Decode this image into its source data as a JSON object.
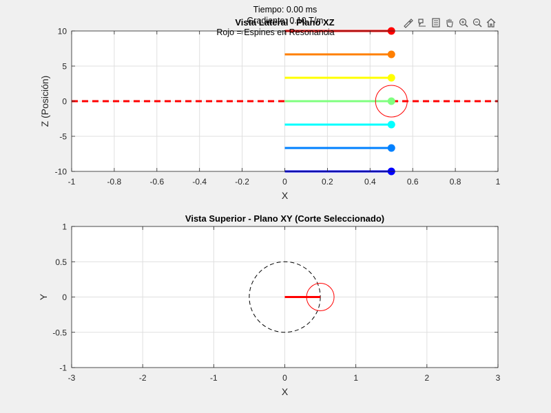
{
  "annotations": {
    "line1": "Tiempo: 0.00 ms",
    "line2": "Gradiente: 0.10 T/m",
    "line3": "Rojo = Espines en Resonancia"
  },
  "toolbar": {
    "icons": [
      "brush-icon",
      "data-tips-icon",
      "legend-icon",
      "pan-icon",
      "zoom-in-icon",
      "zoom-out-icon",
      "home-icon"
    ]
  },
  "colors": {
    "resonance": "#ff0000",
    "grid": "#dfdfdf",
    "axes_bg": "#ffffff",
    "figure_bg": "#f0f0f0"
  },
  "chart_data": [
    {
      "type": "line",
      "title": "Vista Lateral - Plano XZ",
      "xlabel": "X",
      "ylabel": "Z (Posición)",
      "xlim": [
        -1,
        1
      ],
      "ylim": [
        -10,
        10
      ],
      "xticks": [
        "-1",
        "-0.8",
        "-0.6",
        "-0.4",
        "-0.2",
        "0",
        "0.2",
        "0.4",
        "0.6",
        "0.8",
        "1"
      ],
      "xtick_values": [
        -1,
        -0.8,
        -0.6,
        -0.4,
        -0.2,
        0,
        0.2,
        0.4,
        0.6,
        0.8,
        1
      ],
      "yticks": [
        "-10",
        "-5",
        "0",
        "5",
        "10"
      ],
      "ytick_values": [
        -10,
        -5,
        0,
        5,
        10
      ],
      "grid": true,
      "resonance_line": {
        "z": 0,
        "x": [
          -1,
          1
        ],
        "style": "dashed",
        "color": "#ff0000"
      },
      "series": [
        {
          "z": 10,
          "x": [
            0,
            0.5
          ],
          "color": "#ff0000"
        },
        {
          "z": 6.67,
          "x": [
            0,
            0.5
          ],
          "color": "#ff7f00"
        },
        {
          "z": 3.33,
          "x": [
            0,
            0.5
          ],
          "color": "#ffff00"
        },
        {
          "z": 0,
          "x": [
            0,
            0.5
          ],
          "color": "#80ff80"
        },
        {
          "z": -3.33,
          "x": [
            0,
            0.5
          ],
          "color": "#00ffff"
        },
        {
          "z": -6.67,
          "x": [
            0,
            0.5
          ],
          "color": "#0080ff"
        },
        {
          "z": -10,
          "x": [
            0,
            0.5
          ],
          "color": "#0000ff"
        }
      ],
      "highlight_circle": {
        "x": 0.5,
        "z": 0,
        "color": "#ff0000"
      }
    },
    {
      "type": "line",
      "title": "Vista Superior - Plano XY (Corte Seleccionado)",
      "xlabel": "X",
      "ylabel": "Y",
      "xlim": [
        -3,
        3
      ],
      "ylim": [
        -1,
        1
      ],
      "xticks": [
        "-3",
        "-2",
        "-1",
        "0",
        "1",
        "2",
        "3"
      ],
      "xtick_values": [
        -3,
        -2,
        -1,
        0,
        1,
        2,
        3
      ],
      "yticks": [
        "-1",
        "-0.5",
        "0",
        "0.5",
        "1"
      ],
      "ytick_values": [
        -1,
        -0.5,
        0,
        0.5,
        1
      ],
      "grid": true,
      "reference_circle": {
        "cx": 0,
        "cy": 0,
        "r": 0.5,
        "style": "dashed",
        "color": "#000000"
      },
      "vector": {
        "x": [
          0,
          0.5
        ],
        "y": [
          0,
          0
        ],
        "color": "#ff0000"
      },
      "highlight_circle": {
        "x": 0.5,
        "y": 0,
        "color": "#ff0000"
      }
    }
  ]
}
